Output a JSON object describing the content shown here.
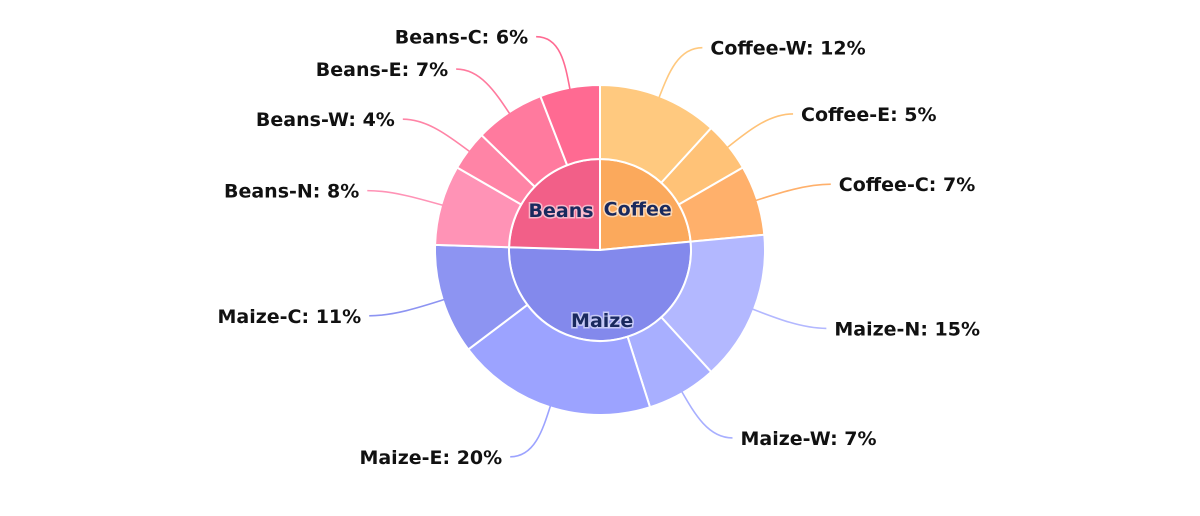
{
  "chart_data": {
    "type": "sunburst",
    "title": "",
    "groups": [
      {
        "name": "Coffee",
        "color": "#fba95c",
        "children": [
          {
            "name": "Coffee-W",
            "value": 12,
            "color": "#ffc97f"
          },
          {
            "name": "Coffee-E",
            "value": 5,
            "color": "#ffc277"
          },
          {
            "name": "Coffee-C",
            "value": 7,
            "color": "#ffb06b"
          }
        ]
      },
      {
        "name": "Maize",
        "color": "#8389ec",
        "children": [
          {
            "name": "Maize-N",
            "value": 15,
            "color": "#b3b8ff"
          },
          {
            "name": "Maize-W",
            "value": 7,
            "color": "#a8afff"
          },
          {
            "name": "Maize-E",
            "value": 20,
            "color": "#9ca3ff"
          },
          {
            "name": "Maize-C",
            "value": 11,
            "color": "#8d94f2"
          }
        ]
      },
      {
        "name": "Beans",
        "color": "#f25f88",
        "children": [
          {
            "name": "Beans-N",
            "value": 8,
            "color": "#ff93b6"
          },
          {
            "name": "Beans-W",
            "value": 4,
            "color": "#ff84a6"
          },
          {
            "name": "Beans-E",
            "value": 7,
            "color": "#ff7a9e"
          },
          {
            "name": "Beans-C",
            "value": 6,
            "color": "#ff6a92"
          }
        ]
      }
    ],
    "label_format": "{name}: {value}%"
  }
}
